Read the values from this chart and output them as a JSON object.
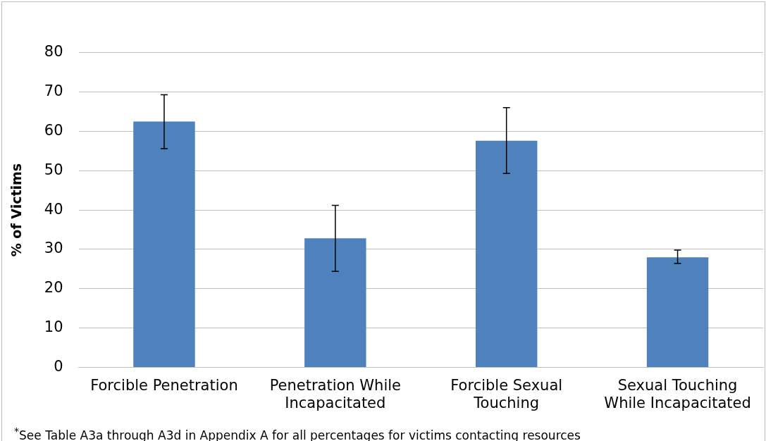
{
  "chart_data": {
    "type": "bar",
    "ylabel": "% of Victims",
    "categories": [
      "Forcible Penetration",
      "Penetration While Incapacitated",
      "Forcible Sexual Touching",
      "Sexual Touching While Incapacitated"
    ],
    "values": [
      62.5,
      32.8,
      57.6,
      28.0
    ],
    "errors": [
      [
        55.6,
        69.3
      ],
      [
        24.4,
        41.2
      ],
      [
        49.3,
        66.0
      ],
      [
        26.4,
        29.8
      ]
    ],
    "color": "#4f81bd",
    "ylim": [
      0,
      80
    ],
    "yticks": [
      0,
      10,
      20,
      30,
      40,
      50,
      60,
      70,
      80
    ],
    "grid": "y",
    "annotations": [
      "$^{*}$See Table A3a through A3d in Appendix A for all percentages for victims contacting resources"
    ]
  }
}
